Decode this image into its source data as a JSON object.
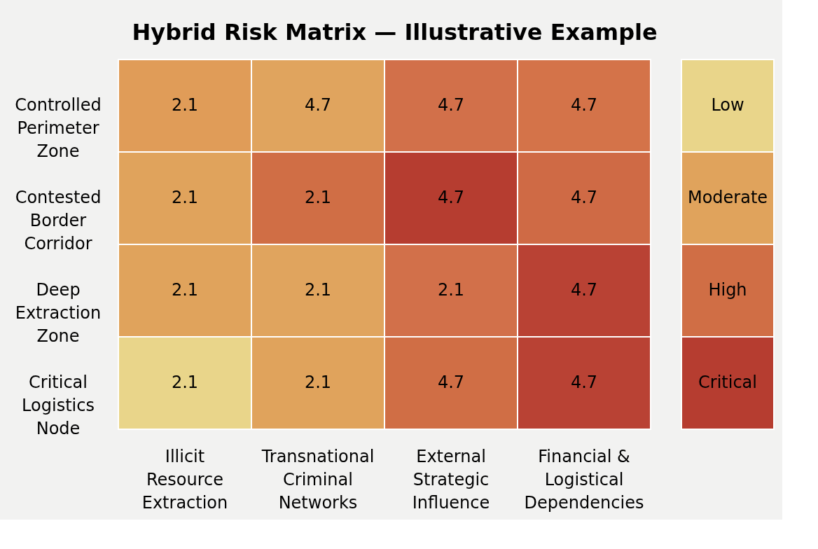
{
  "chart_data": [
    {
      "type": "heatmap",
      "title": "Hybrid Risk Matrix — Illustrative Example",
      "categories": [
        "Illicit Resource Extraction",
        "Transnational Criminal Networks",
        "External Strategic Influence",
        "Financial & Logistical Dependencies"
      ],
      "y_categories": [
        "Controlled Perimeter Zone",
        "Contested Border Corridor",
        "Deep Extraction Zone",
        "Critical Logistics Node"
      ],
      "cells": [
        [
          2.1,
          4.7,
          4.7,
          4.7
        ],
        [
          2.1,
          2.1,
          4.7,
          4.7
        ],
        [
          2.1,
          2.1,
          2.1,
          4.7
        ],
        [
          2.1,
          2.1,
          4.7,
          4.7
        ]
      ],
      "colors": [
        [
          "#e09c58",
          "#e0a45e",
          "#d2704a",
          "#d47349"
        ],
        [
          "#e0a35c",
          "#d06e45",
          "#b63d30",
          "#cf6a45"
        ],
        [
          "#e0a35c",
          "#e0a45e",
          "#d2704a",
          "#b94234"
        ],
        [
          "#e9d58a",
          "#e0a35c",
          "#d06e45",
          "#b94234"
        ]
      ],
      "data_labels": true
    },
    {
      "type": "other",
      "categories": [
        "Low",
        "Moderate",
        "High",
        "Critical"
      ],
      "colors": [
        "#e9d58a",
        "#e0a35c",
        "#d06e45",
        "#b63d30"
      ]
    }
  ]
}
